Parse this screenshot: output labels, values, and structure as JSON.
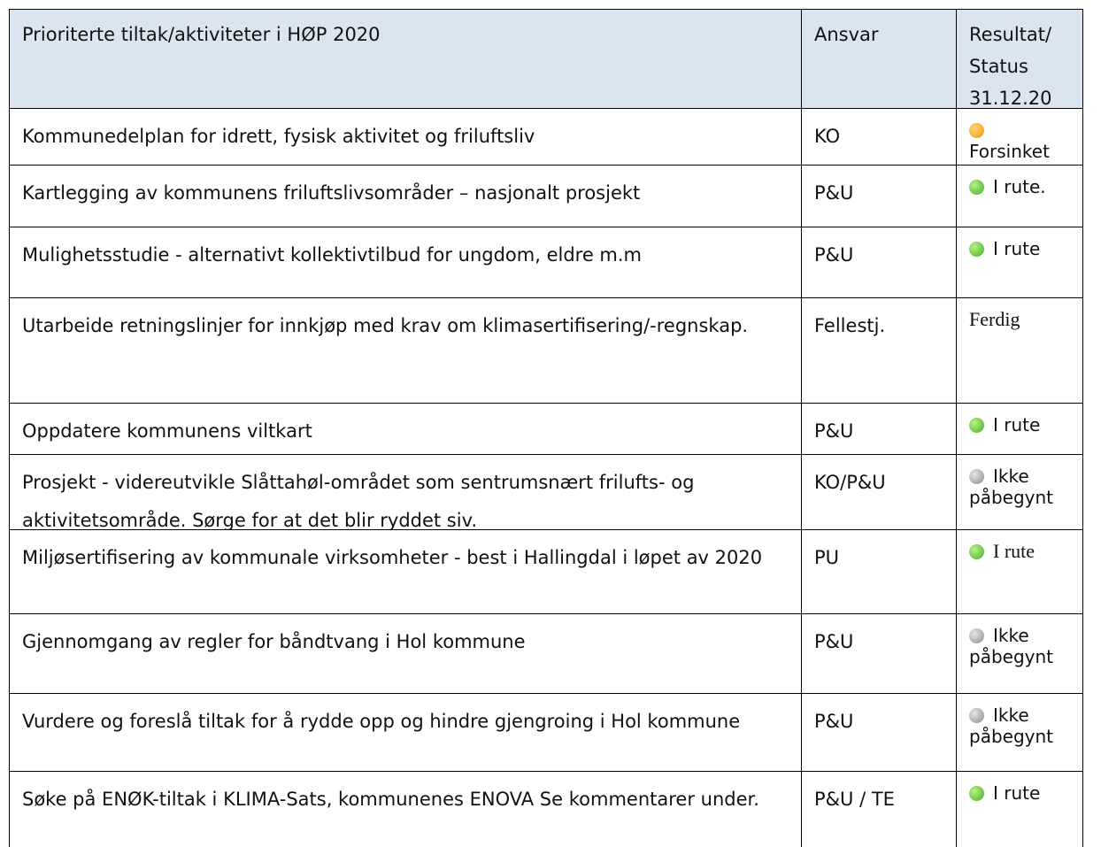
{
  "table": {
    "header": [
      "Prioriterte tiltak/aktiviteter i HØP 2020",
      "Ansvar",
      "Resultat/ Status 31.12.20"
    ],
    "rows": [
      [
        "Kommunedelplan for idrett, fysisk aktivitet og friluftsliv",
        "KO",
        "Forsinket"
      ],
      [
        "Kartlegging av kommunens friluftslivsområder – nasjonalt prosjekt",
        "P&U",
        "I rute."
      ],
      [
        "Mulighetsstudie - alternativt kollektivtilbud for ungdom, eldre m.m",
        "P&U",
        "I rute"
      ],
      [
        "Utarbeide retningslinjer for innkjøp med krav om klimasertifisering/-regnskap.",
        "Fellestj.",
        "Ferdig"
      ],
      [
        "Oppdatere kommunens viltkart",
        "P&U",
        "I rute"
      ],
      [
        "Prosjekt - videreutvikle Slåttahøl-området som sentrumsnært frilufts- og aktivitetsområde. Sørge for at det blir ryddet siv.",
        "KO/P&U",
        "Ikke påbegynt"
      ],
      [
        "Miljøsertifisering av kommunale virksomheter - best i Hallingdal i løpet av 2020",
        "PU",
        "I rute"
      ],
      [
        "Gjennomgang av regler for båndtvang i Hol kommune",
        "P&U",
        "Ikke påbegynt"
      ],
      [
        "Vurdere og foreslå tiltak for å rydde opp og hindre gjengroing i Hol kommune",
        "P&U",
        "Ikke påbegynt"
      ],
      [
        "Søke på ENØK-tiltak i KLIMA-Sats, kommunenes ENOVA Se kommentarer under.",
        "P&U / TE",
        "I rute"
      ]
    ]
  }
}
